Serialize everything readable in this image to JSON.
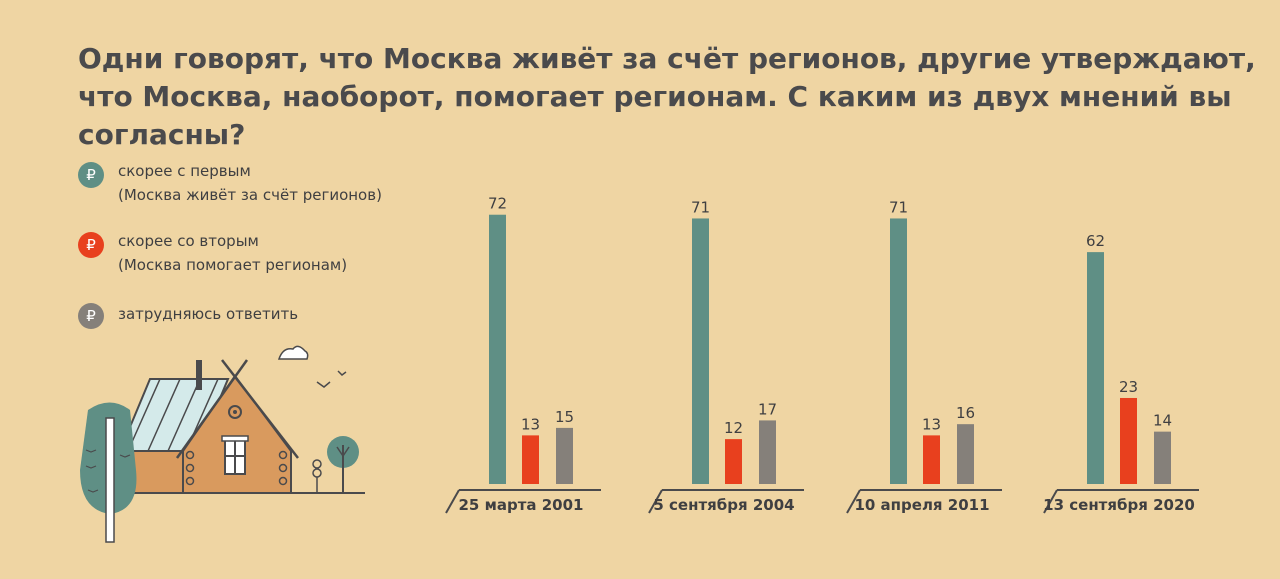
{
  "title": "Одни говорят, что Москва живёт за счёт регионов, другие утверждают, что Москва, наоборот, помогает регионам. С каким из двух мнений вы согласны?",
  "legend": {
    "icon_glyph": "₽",
    "items": [
      {
        "line1": "скорее с первым",
        "line2": "(Москва живёт за счёт регионов)",
        "color": "#5f8f85"
      },
      {
        "line1": "скорее со вторым",
        "line2": "(Москва помогает регионам)",
        "color": "#e8401e"
      },
      {
        "line1": "затрудняюсь ответить",
        "line2": "",
        "color": "#85807a"
      }
    ]
  },
  "chart_data": {
    "type": "bar",
    "categories": [
      "25 марта 2001",
      "5 сентября 2004",
      "10 апреля 2011",
      "13 сентября 2020"
    ],
    "series": [
      {
        "name": "скорее с первым (Москва живёт за счёт регионов)",
        "color": "#5f8f85",
        "values": [
          72,
          71,
          71,
          62
        ]
      },
      {
        "name": "скорее со вторым (Москва помогает регионам)",
        "color": "#e8401e",
        "values": [
          13,
          12,
          13,
          23
        ]
      },
      {
        "name": "затрудняюсь ответить",
        "color": "#85807a",
        "values": [
          15,
          17,
          16,
          14
        ]
      }
    ],
    "ylim": [
      0,
      72
    ],
    "data_labels": true,
    "legend_position": "left",
    "grid": false
  },
  "illustration": {
    "name": "house-landscape"
  }
}
